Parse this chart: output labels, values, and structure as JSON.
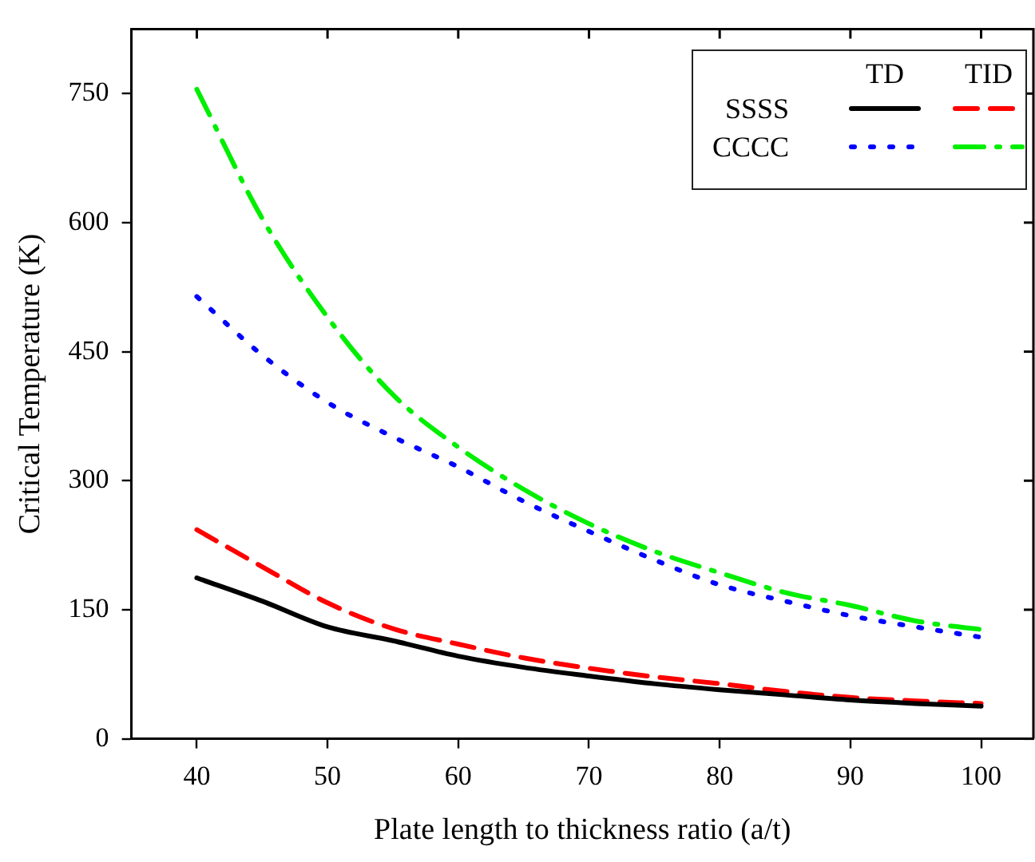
{
  "chart_data": {
    "type": "line",
    "xlabel": "Plate length to thickness ratio (a/t)",
    "ylabel": "Critical Temperature (K)",
    "x": [
      40,
      45,
      50,
      55,
      60,
      65,
      70,
      75,
      80,
      85,
      90,
      95,
      100
    ],
    "series": [
      {
        "color": "#000000",
        "line_style": "solid",
        "values": [
          187,
          160,
          130,
          114,
          96,
          83,
          73,
          64,
          57,
          51,
          45,
          41,
          38
        ]
      },
      {
        "color": "#ff0000",
        "line_style": "dashed",
        "values": [
          243,
          200,
          158,
          128,
          110,
          94,
          82,
          72,
          64,
          55,
          48,
          44,
          41
        ]
      },
      {
        "color": "#0000ff",
        "line_style": "dotted",
        "values": [
          514,
          446,
          391,
          351,
          316,
          276,
          241,
          208,
          179,
          160,
          143,
          130,
          118
        ]
      },
      {
        "color": "#00ee00",
        "line_style": "dashdot",
        "values": [
          755,
          605,
          490,
          400,
          339,
          290,
          250,
          218,
          193,
          170,
          155,
          137,
          127
        ]
      }
    ],
    "xlim": [
      35,
      104
    ],
    "xticks": [
      40,
      50,
      60,
      70,
      80,
      90,
      100
    ],
    "ylim": [
      0,
      825
    ],
    "yticks": [
      0,
      150,
      300,
      450,
      600,
      750
    ],
    "marker": "none",
    "annotations": [
      "TD",
      "TID",
      "SSSS",
      "CCCC"
    ]
  }
}
